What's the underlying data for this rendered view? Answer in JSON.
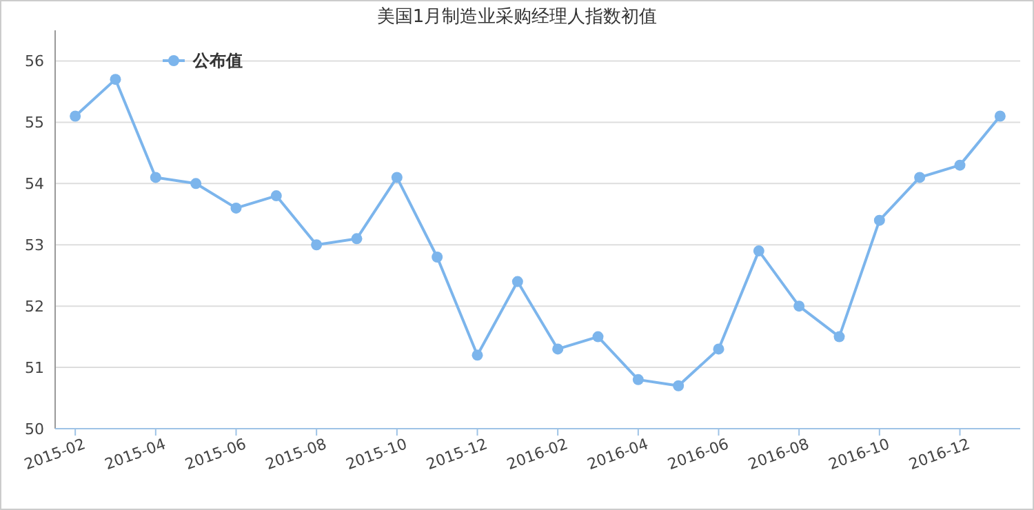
{
  "chart_data": {
    "type": "line",
    "title": "美国1月制造业采购经理人指数初值",
    "categories": [
      "2015-02",
      null,
      "2015-04",
      null,
      "2015-06",
      null,
      "2015-08",
      null,
      "2015-10",
      null,
      "2015-12",
      null,
      "2016-02",
      null,
      "2016-04",
      null,
      "2016-06",
      null,
      "2016-08",
      null,
      "2016-10",
      null,
      "2016-12",
      null
    ],
    "series": [
      {
        "name": "公布值",
        "color": "#7cb5ec",
        "values": [
          55.1,
          55.7,
          54.1,
          54.0,
          53.6,
          53.8,
          53.0,
          53.1,
          54.1,
          52.8,
          51.2,
          52.4,
          51.3,
          51.5,
          50.8,
          50.7,
          51.3,
          52.9,
          52.0,
          51.5,
          53.4,
          54.1,
          54.3,
          55.1
        ]
      }
    ],
    "ylim": [
      50,
      56.5
    ],
    "yticks": [
      50,
      51,
      52,
      53,
      54,
      55,
      56
    ],
    "grid": "y",
    "legend": "top left",
    "marker": "circle",
    "line_style": "solid"
  }
}
